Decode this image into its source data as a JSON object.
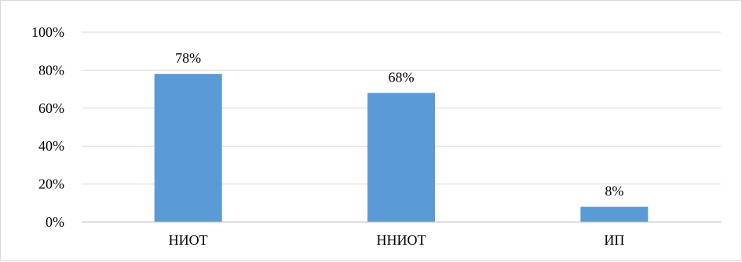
{
  "chart_data": {
    "type": "bar",
    "categories": [
      "НИОТ",
      "ННИОТ",
      "ИП"
    ],
    "values": [
      78,
      68,
      8
    ],
    "data_labels": [
      "78%",
      "68%",
      "8%"
    ],
    "title": "",
    "xlabel": "",
    "ylabel": "",
    "ylim": [
      0,
      100
    ],
    "y_ticks": [
      0,
      20,
      40,
      60,
      80,
      100
    ],
    "y_tick_labels": [
      "0%",
      "20%",
      "40%",
      "60%",
      "80%",
      "100%"
    ],
    "grid": true,
    "legend": "none",
    "colors": {
      "bar": "#5b9bd5",
      "grid": "#d9d9d9",
      "axis": "#bfbfbf",
      "frame": "#d9d9d9"
    }
  }
}
